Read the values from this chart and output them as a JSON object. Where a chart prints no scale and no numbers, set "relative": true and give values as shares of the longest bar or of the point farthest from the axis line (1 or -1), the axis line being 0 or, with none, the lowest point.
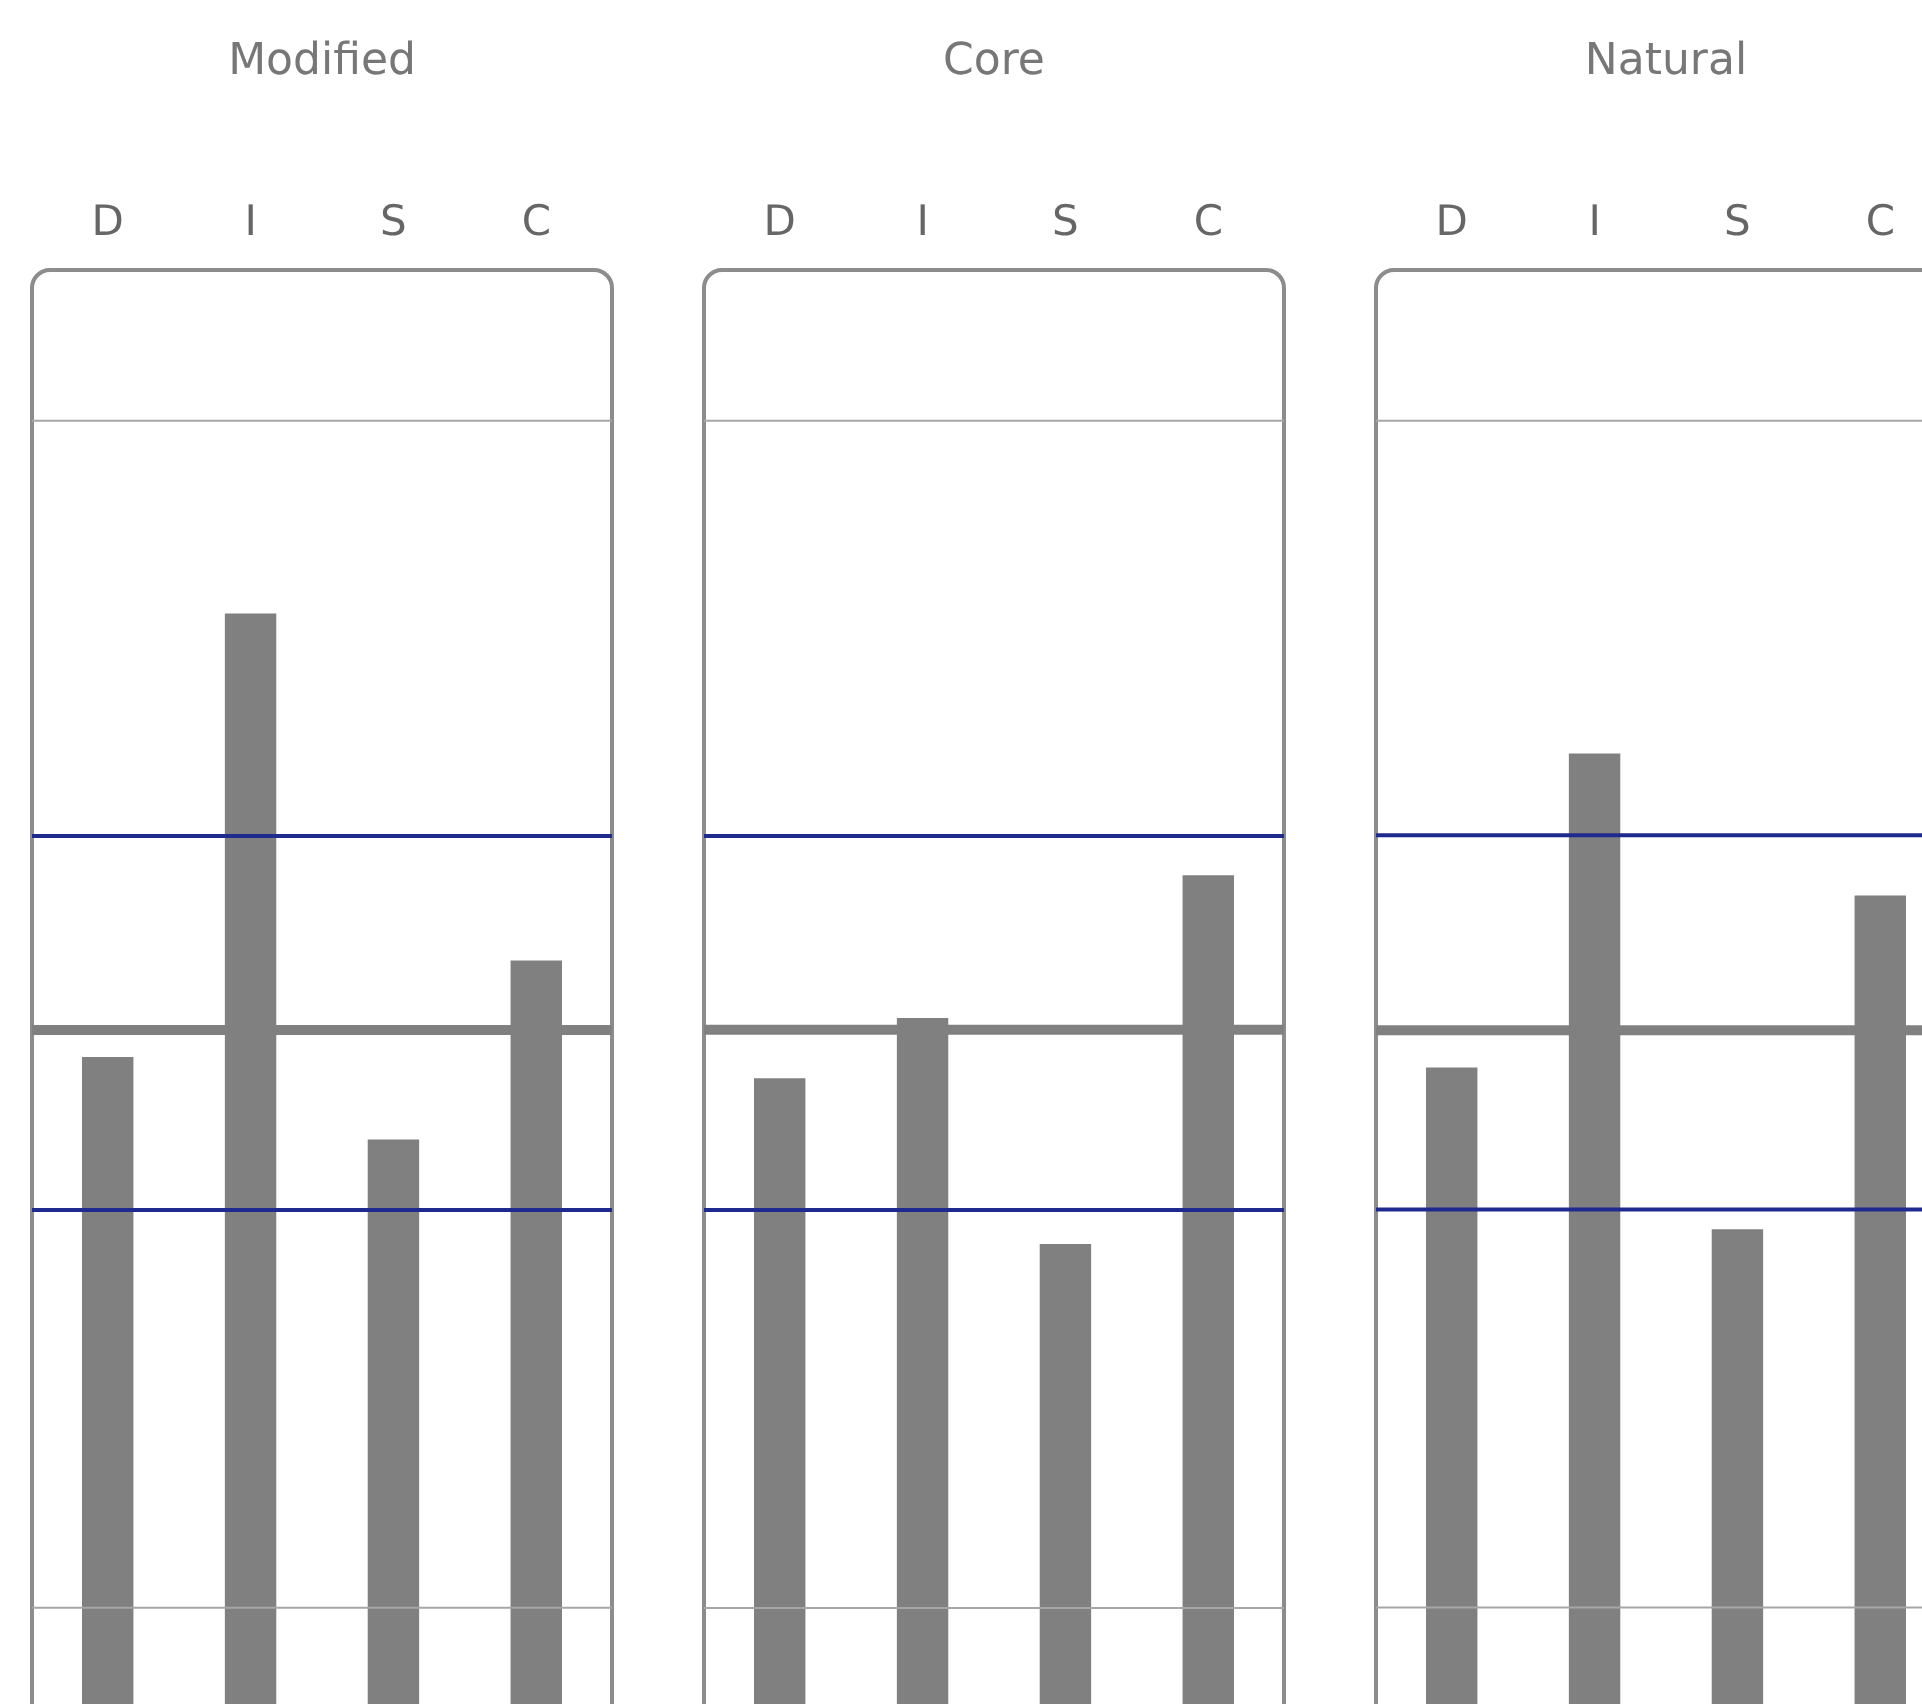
{
  "chart_data": [
    {
      "type": "bar",
      "title": "Modified",
      "categories": [
        "D",
        "I",
        "S",
        "C"
      ],
      "relative": true,
      "color": "#808080",
      "values": [
        0.623,
        1,
        0.553,
        0.705
      ],
      "ref_lines": [
        {
          "axis": "y",
          "value": 1.164,
          "color": "#a6a6a6"
        },
        {
          "axis": "y",
          "value": 0.811,
          "color": "#1f2a8f"
        },
        {
          "axis": "y",
          "value": 0.646,
          "color": "#808080"
        },
        {
          "axis": "y",
          "value": 0.493,
          "color": "#1f2a8f"
        },
        {
          "axis": "y",
          "value": 0.155,
          "color": "#a6a6a6"
        }
      ]
    },
    {
      "type": "bar",
      "title": "Core",
      "categories": [
        "D",
        "I",
        "S",
        "C"
      ],
      "relative": true,
      "color": "#808080",
      "values": [
        0.778,
        0.844,
        0.597,
        1
      ],
      "ref_lines": [
        {
          "axis": "y",
          "value": 1.497,
          "color": "#a6a6a6"
        },
        {
          "axis": "y",
          "value": 1.043,
          "color": "#1f2a8f"
        },
        {
          "axis": "y",
          "value": 0.831,
          "color": "#808080"
        },
        {
          "axis": "y",
          "value": 0.634,
          "color": "#1f2a8f"
        },
        {
          "axis": "y",
          "value": 0.199,
          "color": "#a6a6a6"
        }
      ]
    },
    {
      "type": "bar",
      "title": "Natural",
      "categories": [
        "D",
        "I",
        "S",
        "C"
      ],
      "relative": true,
      "color": "#808080",
      "values": [
        0.697,
        1,
        0.541,
        0.863
      ],
      "ref_lines": [
        {
          "axis": "y",
          "value": 1.321,
          "color": "#a6a6a6"
        },
        {
          "axis": "y",
          "value": 0.921,
          "color": "#1f2a8f"
        },
        {
          "axis": "y",
          "value": 0.733,
          "color": "#808080"
        },
        {
          "axis": "y",
          "value": 0.56,
          "color": "#1f2a8f"
        },
        {
          "axis": "y",
          "value": 0.176,
          "color": "#a6a6a6"
        }
      ]
    }
  ]
}
